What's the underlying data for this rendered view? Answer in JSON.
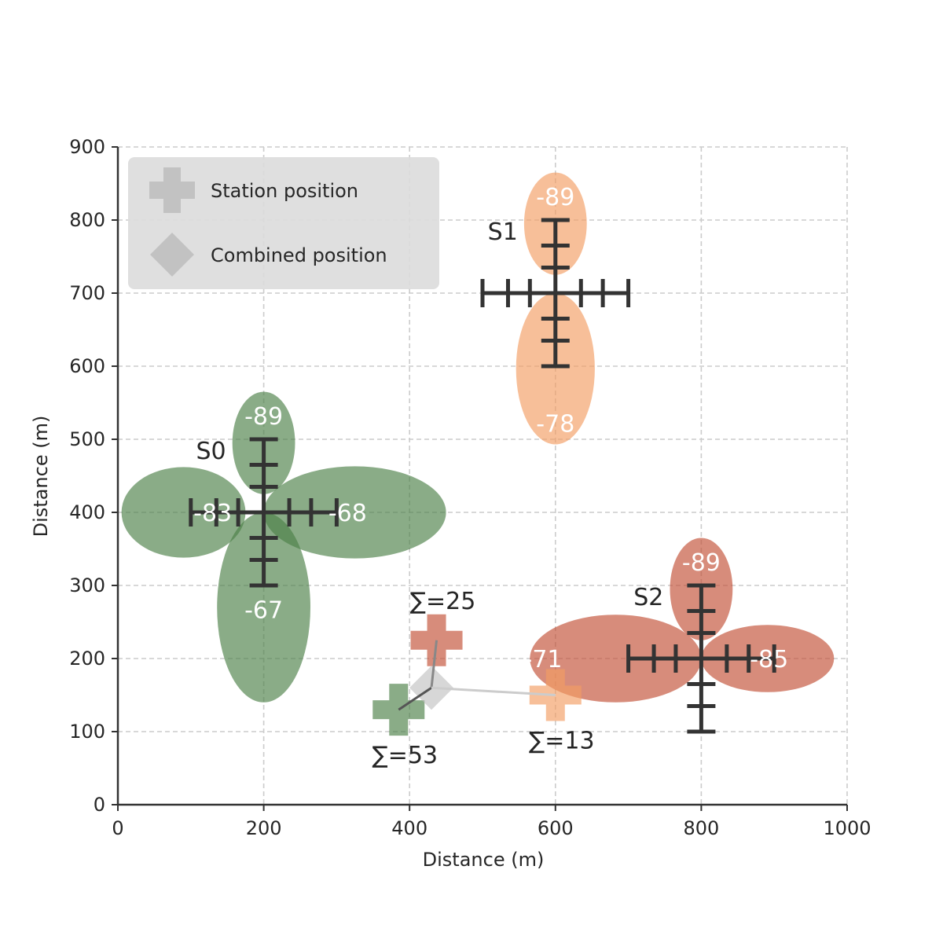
{
  "chart_data": {
    "type": "scatter",
    "title": "",
    "xlabel": "Distance (m)",
    "ylabel": "Distance (m)",
    "xlim": [
      0,
      1000
    ],
    "ylim": [
      0,
      900
    ],
    "xticks": [
      0,
      200,
      400,
      600,
      800,
      1000
    ],
    "yticks": [
      0,
      100,
      200,
      300,
      400,
      500,
      600,
      700,
      800,
      900
    ],
    "grid": true,
    "legend_position": "top-left",
    "legend": [
      {
        "label": "Station position",
        "marker": "plus",
        "color": "#bdbdbd"
      },
      {
        "label": "Combined position",
        "marker": "diamond",
        "color": "#bdbdbd"
      }
    ],
    "stations": [
      {
        "name": "S0",
        "x": 200,
        "y": 400,
        "color": "#4c7f46",
        "lobes": [
          {
            "dir": "up",
            "value": "-89",
            "near": 25,
            "far": 165,
            "halfwidth": 43,
            "label_at": 532
          },
          {
            "dir": "down",
            "value": "-67",
            "near": 0,
            "far": 260,
            "halfwidth": 64,
            "label_at": 267
          },
          {
            "dir": "left",
            "value": "-83",
            "near": 25,
            "far": 195,
            "halfwidth": 62,
            "label_at": 130
          },
          {
            "dir": "right",
            "value": "-68",
            "near": 0,
            "far": 250,
            "halfwidth": 63,
            "label_at": 315
          }
        ]
      },
      {
        "name": "S1",
        "x": 600,
        "y": 700,
        "color": "#f29c62",
        "lobes": [
          {
            "dir": "up",
            "value": "-89",
            "near": 25,
            "far": 165,
            "halfwidth": 43,
            "label_at": 832
          },
          {
            "dir": "down",
            "value": "-78",
            "near": 0,
            "far": 207,
            "halfwidth": 54,
            "label_at": 522
          }
        ]
      },
      {
        "name": "S2",
        "x": 800,
        "y": 200,
        "color": "#c24f34",
        "lobes": [
          {
            "dir": "up",
            "value": "-89",
            "near": 25,
            "far": 165,
            "halfwidth": 43,
            "label_at": 332
          },
          {
            "dir": "left",
            "value": "-71",
            "near": 0,
            "far": 235,
            "halfwidth": 60,
            "label_at": 583
          },
          {
            "dir": "right",
            "value": "-85",
            "near": 0,
            "far": 182,
            "halfwidth": 46,
            "label_at": 893
          }
        ]
      }
    ],
    "crosshair_arms": [
      {
        "station": "S0",
        "up": 100,
        "down": 100,
        "left": 100,
        "right": 100
      },
      {
        "station": "S1",
        "up": 100,
        "down": 100,
        "left": 100,
        "right": 100
      },
      {
        "station": "S2",
        "up": 100,
        "down": 100,
        "left": 100,
        "right": 100
      }
    ],
    "estimates": [
      {
        "label": "∑=53",
        "x": 385,
        "y": 130,
        "color": "#4c7f46",
        "text_pos": "below"
      },
      {
        "label": "∑=25",
        "x": 437,
        "y": 225,
        "color": "#c24f34",
        "text_pos": "above"
      },
      {
        "label": "∑=13",
        "x": 600,
        "y": 150,
        "color": "#f29c62",
        "text_pos": "below"
      }
    ],
    "combined": {
      "x": 430,
      "y": 160,
      "color": "#bdbdbd"
    }
  }
}
